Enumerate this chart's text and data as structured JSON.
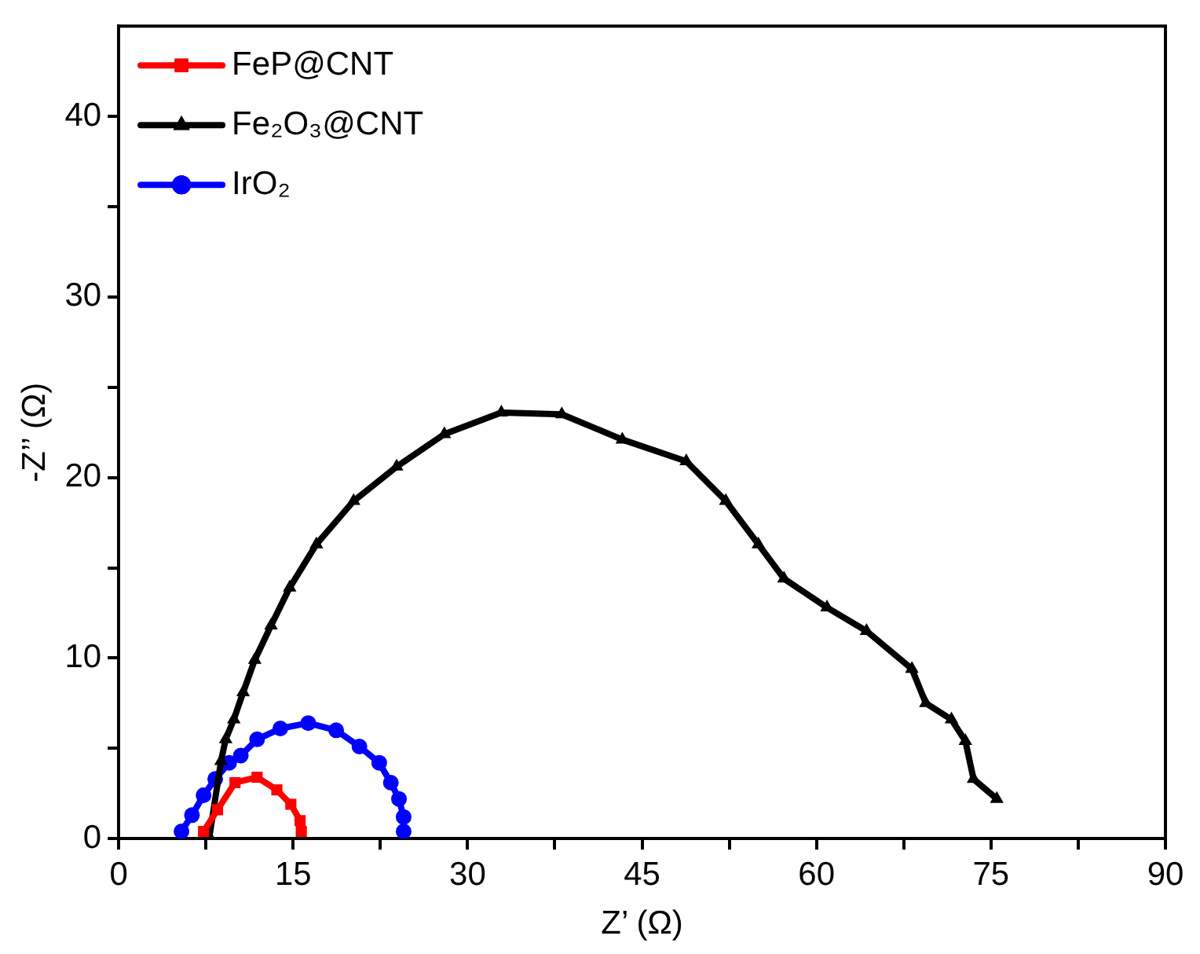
{
  "chart_data": {
    "type": "line",
    "xlabel": "Z’ (Ω)",
    "ylabel": "-Z’’ (Ω)",
    "xlim": [
      0,
      90
    ],
    "ylim": [
      0,
      45
    ],
    "xticks": [
      0,
      {
        "value": 7.5,
        "label": null
      },
      15,
      {
        "value": 22.5,
        "label": null
      },
      30,
      {
        "value": 37.5,
        "label": null
      },
      45,
      {
        "value": 52.5,
        "label": null
      },
      60,
      {
        "value": 67.5,
        "label": null
      },
      75,
      {
        "value": 82.5,
        "label": null
      },
      90
    ],
    "yticks": [
      0,
      {
        "value": 5,
        "label": null
      },
      10,
      {
        "value": 15,
        "label": null
      },
      20,
      {
        "value": 25,
        "label": null
      },
      30,
      {
        "value": 35,
        "label": null
      },
      40
    ],
    "grid": false,
    "legend": "top left",
    "line_style": "solid",
    "series": [
      {
        "name": "FeP@CNT",
        "color": "#ff0000",
        "marker": "square",
        "x": [
          7.3,
          8.5,
          10.0,
          11.9,
          13.6,
          14.8,
          15.6,
          15.7
        ],
        "values": [
          0.4,
          1.6,
          3.1,
          3.4,
          2.7,
          1.9,
          1.0,
          0.4
        ]
      },
      {
        "name": "Fe₂O₃@CNT",
        "color": "#000000",
        "marker": "triangle",
        "x": [
          7.2,
          7.8,
          8.8,
          9.2,
          9.9,
          10.7,
          11.7,
          13.1,
          14.7,
          17.0,
          20.2,
          23.9,
          28.0,
          32.9,
          38.1,
          43.3,
          48.8,
          52.2,
          55.0,
          57.2,
          60.9,
          64.3,
          68.2,
          69.4,
          71.6,
          72.8,
          73.5,
          75.5
        ],
        "values": [
          0,
          0.1,
          4.3,
          5.5,
          6.6,
          8.1,
          9.9,
          11.8,
          13.9,
          16.3,
          18.7,
          20.6,
          22.4,
          23.6,
          23.5,
          22.1,
          20.9,
          18.7,
          16.3,
          14.4,
          12.8,
          11.5,
          9.4,
          7.5,
          6.6,
          5.4,
          3.3,
          2.2
        ]
      },
      {
        "name": "IrO₂",
        "color": "#0000ff",
        "marker": "circle",
        "x": [
          5.4,
          6.3,
          7.3,
          8.3,
          9.5,
          10.5,
          11.9,
          13.9,
          16.3,
          18.7,
          20.7,
          22.4,
          23.4,
          24.1,
          24.5,
          24.5
        ],
        "values": [
          0.4,
          1.3,
          2.4,
          3.3,
          4.2,
          4.6,
          5.5,
          6.1,
          6.4,
          6.0,
          5.1,
          4.2,
          3.1,
          2.2,
          1.2,
          0.4
        ]
      }
    ]
  }
}
